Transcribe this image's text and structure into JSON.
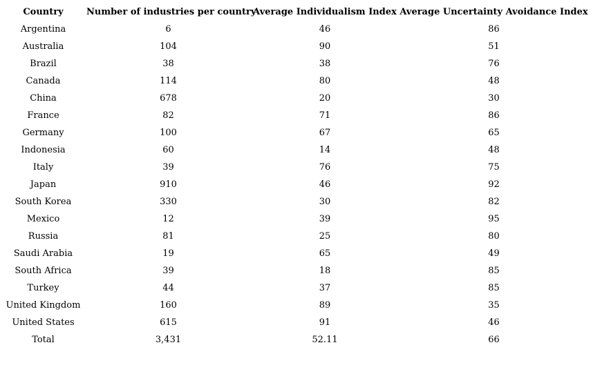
{
  "colors": {
    "background": "#ffffff",
    "text": "#000000"
  },
  "table": {
    "columns": [
      "Country",
      "Number of industries per country",
      "Average Individualism Index",
      "Average Uncertainty Avoidance Index"
    ],
    "rows": [
      [
        "Argentina",
        "6",
        "46",
        "86"
      ],
      [
        "Australia",
        "104",
        "90",
        "51"
      ],
      [
        "Brazil",
        "38",
        "38",
        "76"
      ],
      [
        "Canada",
        "114",
        "80",
        "48"
      ],
      [
        "China",
        "678",
        "20",
        "30"
      ],
      [
        "France",
        "82",
        "71",
        "86"
      ],
      [
        "Germany",
        "100",
        "67",
        "65"
      ],
      [
        "Indonesia",
        "60",
        "14",
        "48"
      ],
      [
        "Italy",
        "39",
        "76",
        "75"
      ],
      [
        "Japan",
        "910",
        "46",
        "92"
      ],
      [
        "South Korea",
        "330",
        "30",
        "82"
      ],
      [
        "Mexico",
        "12",
        "39",
        "95"
      ],
      [
        "Russia",
        "81",
        "25",
        "80"
      ],
      [
        "Saudi Arabia",
        "19",
        "65",
        "49"
      ],
      [
        "South Africa",
        "39",
        "18",
        "85"
      ],
      [
        "Turkey",
        "44",
        "37",
        "85"
      ],
      [
        "United Kingdom",
        "160",
        "89",
        "35"
      ],
      [
        "United States",
        "615",
        "91",
        "46"
      ],
      [
        "Total",
        "3,431",
        "52.11",
        "66"
      ]
    ]
  },
  "chart_data": {
    "type": "table",
    "title": "",
    "categories": [
      "Argentina",
      "Australia",
      "Brazil",
      "Canada",
      "China",
      "France",
      "Germany",
      "Indonesia",
      "Italy",
      "Japan",
      "South Korea",
      "Mexico",
      "Russia",
      "Saudi Arabia",
      "South Africa",
      "Turkey",
      "United Kingdom",
      "United States"
    ],
    "series": [
      {
        "name": "Number of industries per country",
        "values": [
          6,
          104,
          38,
          114,
          678,
          82,
          100,
          60,
          39,
          910,
          330,
          12,
          81,
          19,
          39,
          44,
          160,
          615
        ]
      },
      {
        "name": "Average Individualism Index",
        "values": [
          46,
          90,
          38,
          80,
          20,
          71,
          67,
          14,
          76,
          46,
          30,
          39,
          25,
          65,
          18,
          37,
          89,
          91
        ]
      },
      {
        "name": "Average Uncertainty Avoidance Index",
        "values": [
          86,
          51,
          76,
          48,
          30,
          86,
          65,
          48,
          75,
          92,
          82,
          95,
          80,
          49,
          85,
          85,
          35,
          46
        ]
      }
    ],
    "totals": {
      "Number of industries per country": "3,431",
      "Average Individualism Index": "52.11",
      "Average Uncertainty Avoidance Index": "66"
    }
  }
}
